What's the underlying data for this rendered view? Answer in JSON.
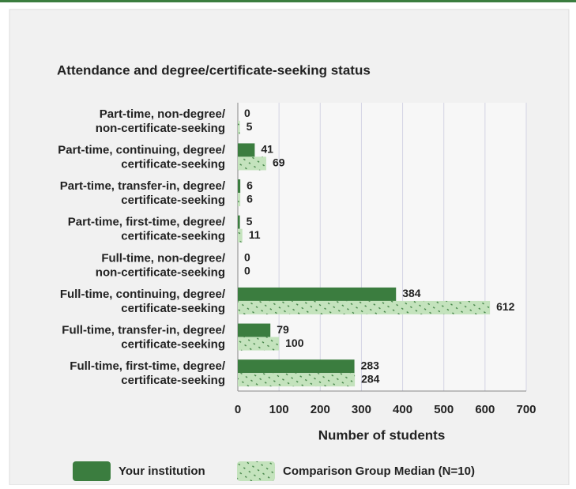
{
  "chart_data": {
    "type": "barh",
    "title": "Attendance and degree/certificate-seeking status",
    "xlabel": "Number of students",
    "categories": [
      [
        "Part-time, non-degree/",
        "non-certificate-seeking"
      ],
      [
        "Part-time, continuing, degree/",
        "certificate-seeking"
      ],
      [
        "Part-time, transfer-in, degree/",
        "certificate-seeking"
      ],
      [
        "Part-time, first-time, degree/",
        "certificate-seeking"
      ],
      [
        "Full-time, non-degree/",
        "non-certificate-seeking"
      ],
      [
        "Full-time, continuing, degree/",
        "certificate-seeking"
      ],
      [
        "Full-time, transfer-in, degree/",
        "certificate-seeking"
      ],
      [
        "Full-time, first-time, degree/",
        "certificate-seeking"
      ]
    ],
    "series": [
      {
        "name": "Your institution",
        "color": "#3b7d3f",
        "values": [
          0,
          41,
          6,
          5,
          0,
          384,
          79,
          283
        ]
      },
      {
        "name": "Comparison Group Median (N=10)",
        "color": "#c4e3bd",
        "values": [
          5,
          69,
          6,
          11,
          0,
          612,
          100,
          284
        ]
      }
    ],
    "xlim": [
      0,
      700
    ],
    "xticks": [
      0,
      100,
      200,
      300,
      400,
      500,
      600,
      700
    ],
    "grid": true
  }
}
